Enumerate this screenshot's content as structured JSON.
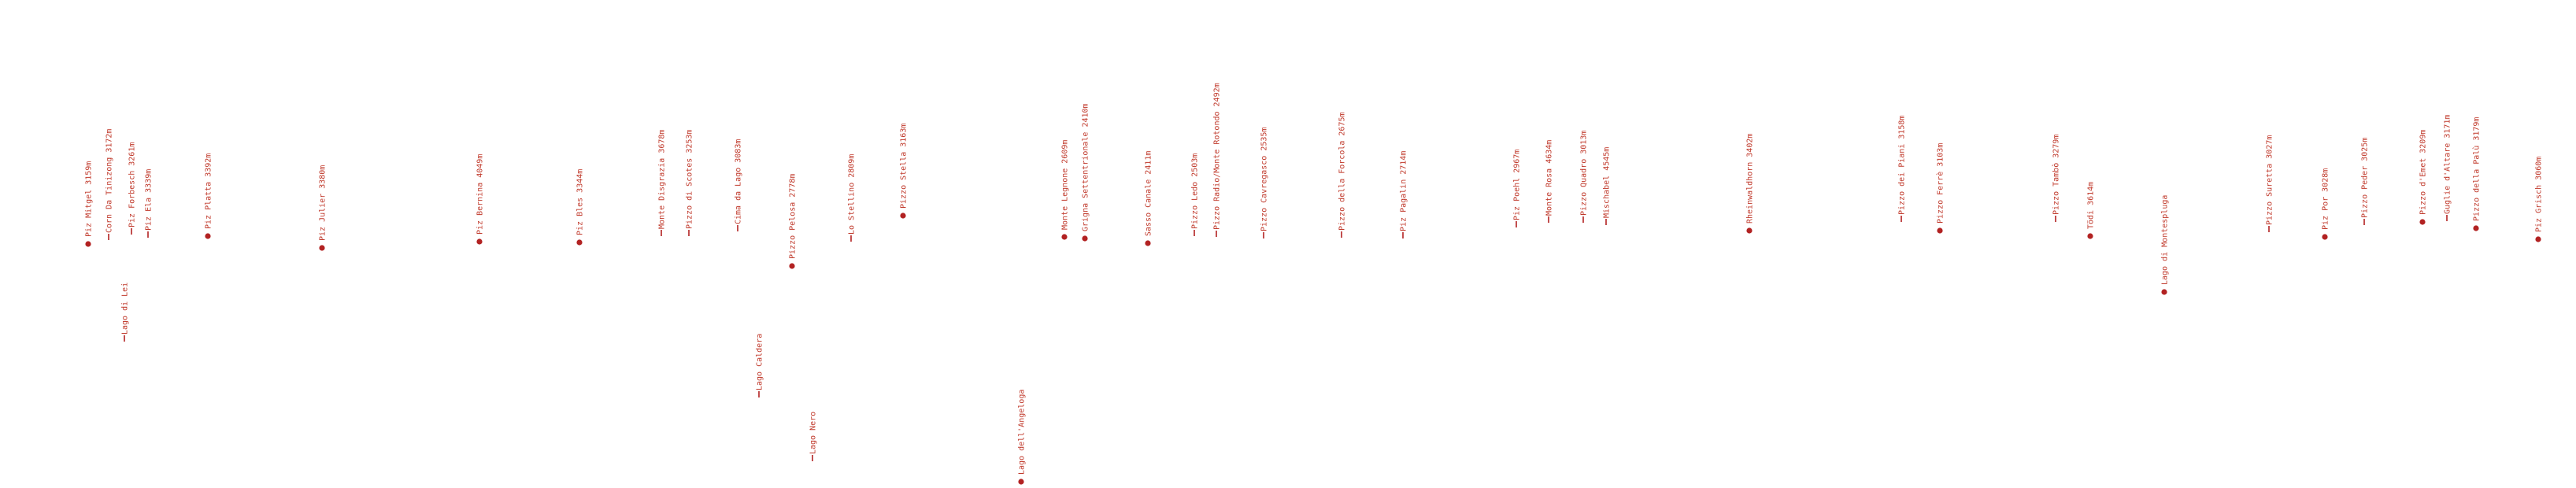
{
  "colors": {
    "marker": "#b22222",
    "text": "#c0392b"
  },
  "peaks": [
    {
      "label": "Piz Mitgel 3159m",
      "marker": "dot"
    },
    {
      "label": "Corn Da Tinizong 3172m",
      "marker": "dash"
    },
    {
      "label": "Piz Forbesch 3261m",
      "marker": "dash"
    },
    {
      "label": "Piz Ela 3339m",
      "marker": "dash"
    },
    {
      "label": "Piz Platta 3392m",
      "marker": "dot"
    },
    {
      "label": "Piz Julier 3380m",
      "marker": "dot"
    },
    {
      "label": "Piz Bernina 4049m",
      "marker": "dot"
    },
    {
      "label": "Piz Bles 3344m",
      "marker": "dot"
    },
    {
      "label": "Monte Disgrazia 3678m",
      "marker": "dash"
    },
    {
      "label": "Pizzo di Scotes 3253m",
      "marker": "dash"
    },
    {
      "label": "Cima da Lago 3083m",
      "marker": "dash"
    },
    {
      "label": "Pizzo Pelosa 2778m",
      "marker": "dot"
    },
    {
      "label": "Lo Stellino 2809m",
      "marker": "dash"
    },
    {
      "label": "Pizzo Stella 3163m",
      "marker": "dot"
    },
    {
      "label": "Monte Legnone 2609m",
      "marker": "dot"
    },
    {
      "label": "Grigna Settentrionale 2410m",
      "marker": "dot"
    },
    {
      "label": "Sasso Canale 2411m",
      "marker": "dot"
    },
    {
      "label": "Pizzo Ledo 2503m",
      "marker": "dash"
    },
    {
      "label": "Pizzo Radio/Monte Rotondo 2492m",
      "marker": "dash"
    },
    {
      "label": "Pizzo Cavregasco 2535m",
      "marker": "dash"
    },
    {
      "label": "Pizzo della Forcola 2675m",
      "marker": "dash"
    },
    {
      "label": "Piz Pagalin 2714m",
      "marker": "dash"
    },
    {
      "label": "Piz Poehl 2967m",
      "marker": "dash"
    },
    {
      "label": "Monte Rosa 4634m",
      "marker": "dash"
    },
    {
      "label": "Pizzo Quadro 3013m",
      "marker": "dash"
    },
    {
      "label": "Mischabel 4545m",
      "marker": "dash"
    },
    {
      "label": "Rheinwaldhorn 3402m",
      "marker": "dot"
    },
    {
      "label": "Pizzo dei Piani 3158m",
      "marker": "dash"
    },
    {
      "label": "Pizzo Ferrè 3103m",
      "marker": "dot"
    },
    {
      "label": "Pizzo Tambò 3279m",
      "marker": "dash"
    },
    {
      "label": "Tödi 3614m",
      "marker": "dot"
    },
    {
      "label": "Pizzo Suretta 3027m",
      "marker": "dash"
    },
    {
      "label": "Piz Por 3028m",
      "marker": "dot"
    },
    {
      "label": "Pizzo Peder 3025m",
      "marker": "dash"
    },
    {
      "label": "Pizzo d'Emet 3209m",
      "marker": "dot"
    },
    {
      "label": "Guglie d'Altare 3171m",
      "marker": "dash"
    },
    {
      "label": "Pizzo della Palù 3179m",
      "marker": "dot"
    },
    {
      "label": "Piz Grisch 3060m",
      "marker": "dot"
    }
  ],
  "lakes": [
    {
      "label": "Lago di Lei",
      "marker": "dash"
    },
    {
      "label": "Lago Caldera",
      "marker": "dash"
    },
    {
      "label": "Lago Nero",
      "marker": "dash"
    },
    {
      "label": "Lago dell'Angeloga",
      "marker": "dot"
    },
    {
      "label": "Lago di Montespluga",
      "marker": "dot"
    }
  ]
}
